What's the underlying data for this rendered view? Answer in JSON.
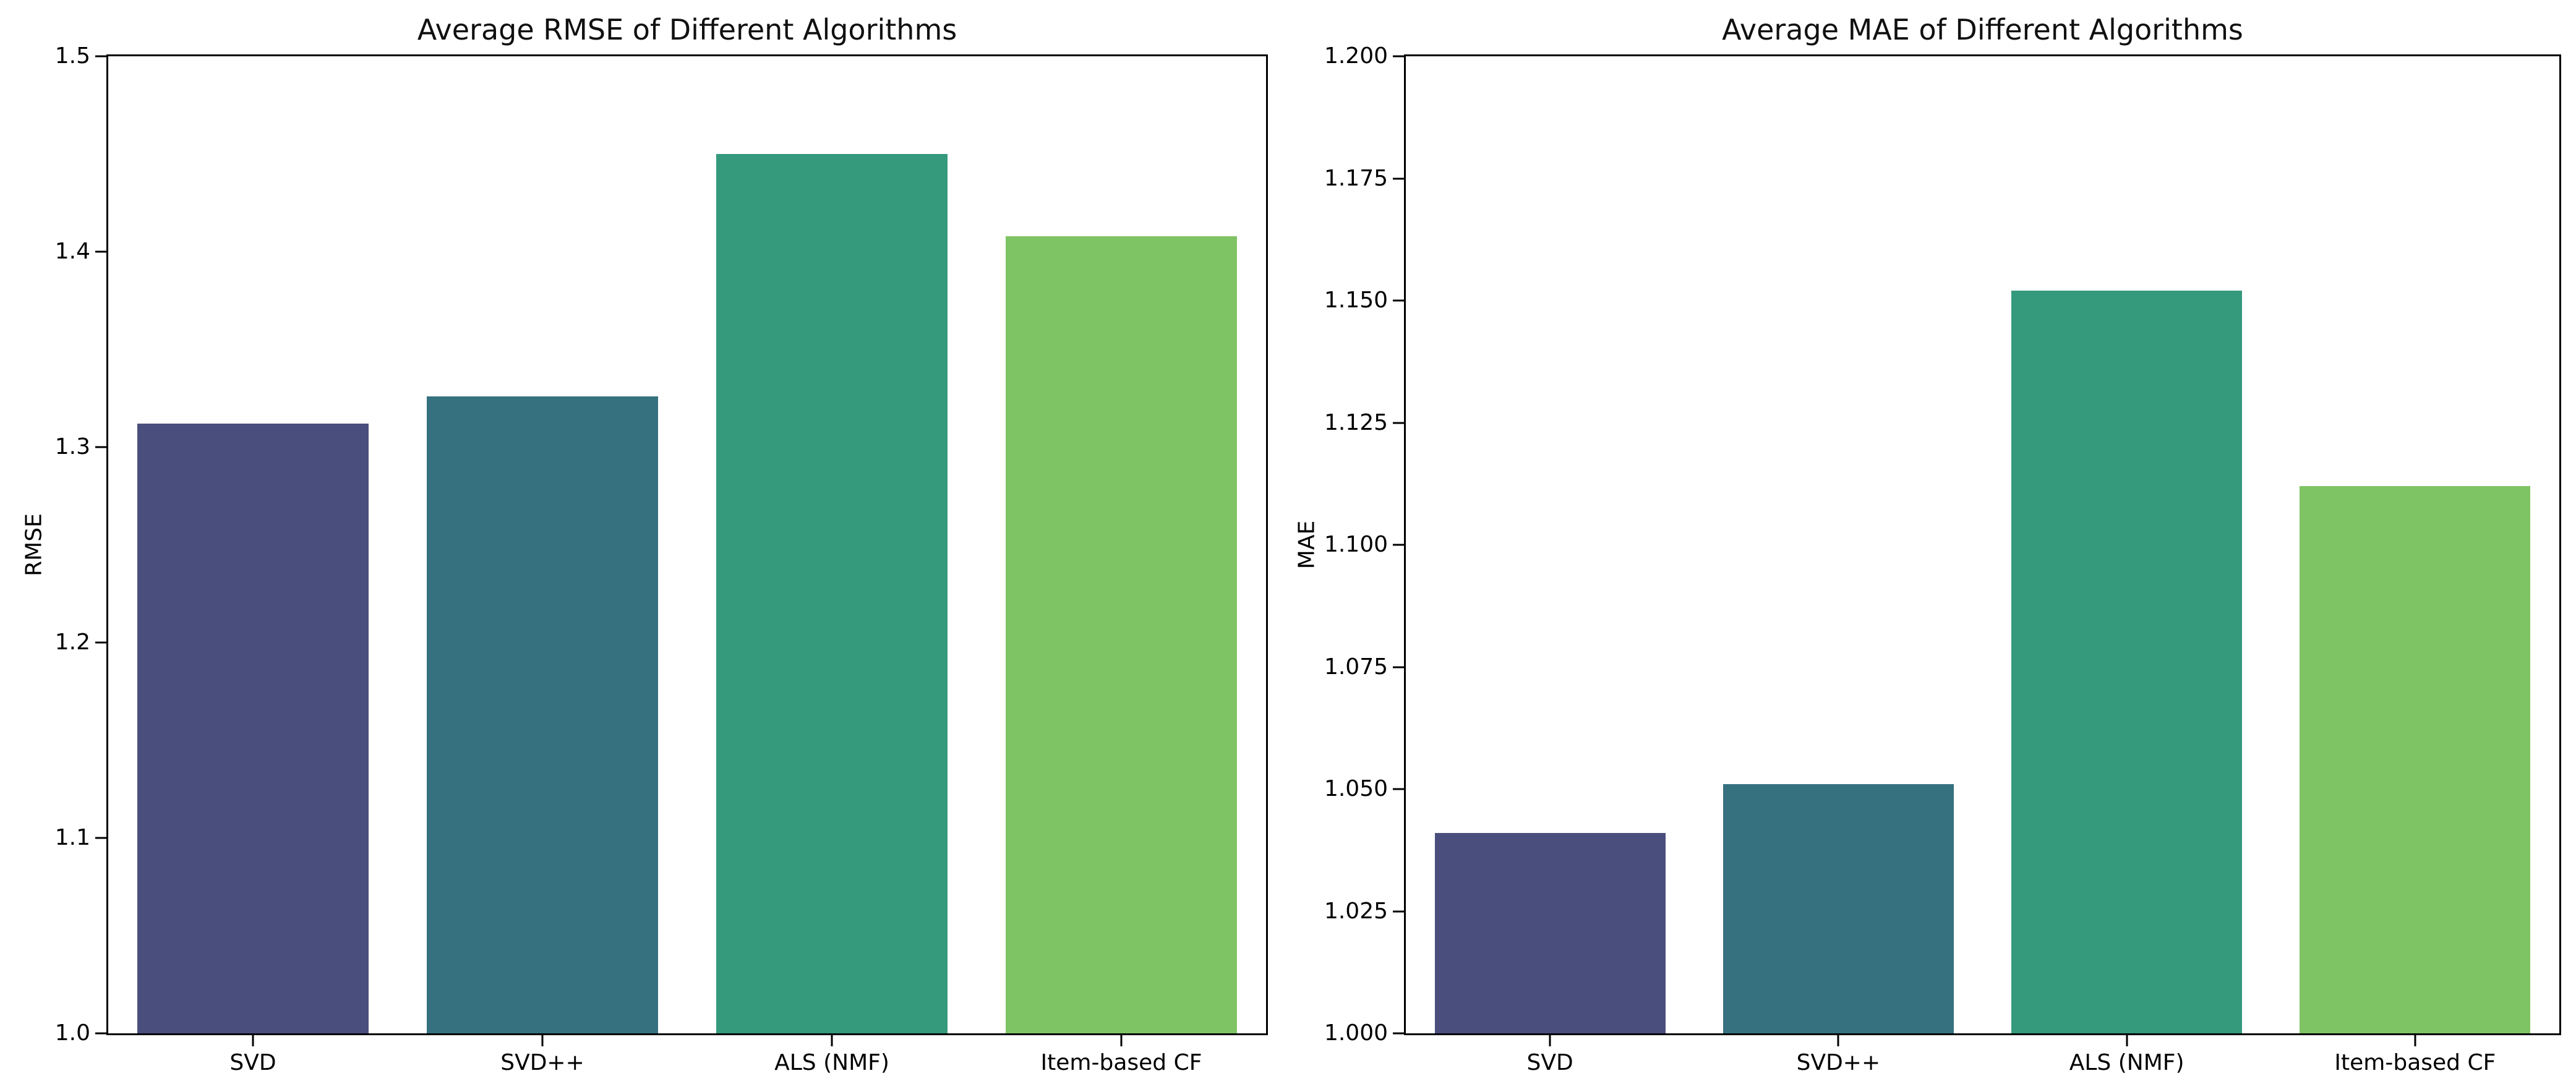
{
  "figure": {
    "background": "#ffffff",
    "text_color": "#000000",
    "spine_color": "#000000"
  },
  "chart_data": [
    {
      "type": "bar",
      "title": "Average RMSE of Different Algorithms",
      "xlabel": "",
      "ylabel": "RMSE",
      "categories": [
        "SVD",
        "SVD++",
        "ALS (NMF)",
        "Item-based CF"
      ],
      "values": [
        1.312,
        1.326,
        1.45,
        1.408
      ],
      "ylim": [
        1.0,
        1.5
      ],
      "yticks": [
        "1.0",
        "1.1",
        "1.2",
        "1.3",
        "1.4",
        "1.5"
      ],
      "bar_colors": [
        "#4a4e7c",
        "#36717f",
        "#35997c",
        "#7fc464"
      ],
      "bar_width_fraction": 0.8,
      "grid": false,
      "legend": null
    },
    {
      "type": "bar",
      "title": "Average MAE of Different Algorithms",
      "xlabel": "",
      "ylabel": "MAE",
      "categories": [
        "SVD",
        "SVD++",
        "ALS (NMF)",
        "Item-based CF"
      ],
      "values": [
        1.041,
        1.051,
        1.152,
        1.112
      ],
      "ylim": [
        1.0,
        1.2
      ],
      "yticks": [
        "1.000",
        "1.025",
        "1.050",
        "1.075",
        "1.100",
        "1.125",
        "1.150",
        "1.175",
        "1.200"
      ],
      "bar_colors": [
        "#4a4e7c",
        "#36717f",
        "#35997c",
        "#7fc464"
      ],
      "bar_width_fraction": 0.8,
      "grid": false,
      "legend": null
    }
  ]
}
